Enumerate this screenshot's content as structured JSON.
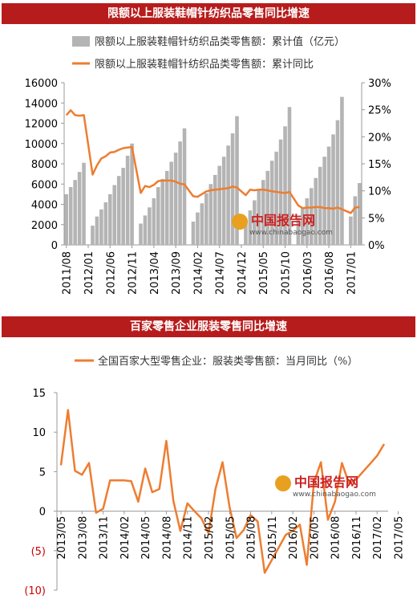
{
  "watermark": {
    "brand": "中国报告网",
    "url": "www.chinabaogao.com",
    "logo": "CBG"
  },
  "chart_data": [
    {
      "type": "bar+line",
      "title": "限额以上服装鞋帽针纺织品零售同比增速",
      "categories_ticks": [
        "2011/08",
        "2012/01",
        "2012/06",
        "2012/11",
        "2013/04",
        "2013/09",
        "2014/02",
        "2014/07",
        "2014/12",
        "2015/05",
        "2015/10",
        "2016/03",
        "2016/08",
        "2017/01"
      ],
      "start_month": "2011/08",
      "legend_position": "top",
      "yleft": {
        "min": 0,
        "max": 16000,
        "ticks": [
          "0",
          "2000",
          "4000",
          "6000",
          "8000",
          "10000",
          "12000",
          "14000",
          "16000"
        ]
      },
      "yright": {
        "min": 0,
        "max": 30,
        "ticks": [
          "0%",
          "5%",
          "10%",
          "15%",
          "20%",
          "25%",
          "30%"
        ]
      },
      "series": [
        {
          "name": "限额以上服装鞋帽针纺织品类零售额：累计值（亿元）",
          "kind": "bar",
          "color": "#b4b4b4",
          "values": [
            5000,
            5700,
            6400,
            7200,
            8100,
            null,
            1900,
            2800,
            3500,
            4200,
            5000,
            5900,
            6800,
            7600,
            8800,
            10000,
            null,
            2100,
            2900,
            3700,
            4600,
            5700,
            6500,
            7300,
            8200,
            9100,
            10200,
            11500,
            null,
            2300,
            3200,
            4100,
            5100,
            6000,
            6900,
            7800,
            8700,
            9800,
            11000,
            12700,
            null,
            2500,
            3400,
            4400,
            5400,
            6400,
            7300,
            8300,
            9200,
            10400,
            11700,
            13600,
            null,
            2700,
            3600,
            4600,
            5600,
            6600,
            7700,
            8700,
            9700,
            10900,
            12300,
            14600,
            null,
            2800,
            4800,
            6100
          ]
        },
        {
          "name": "限额以上服装鞋帽针纺织品类零售额：累计同比",
          "kind": "line",
          "color": "#ed7d31",
          "values": [
            24,
            24.9,
            24,
            23.9,
            24,
            null,
            13,
            14.7,
            16,
            16.4,
            17.1,
            17.2,
            17.6,
            17.9,
            18,
            18.1,
            null,
            9.6,
            10.9,
            10.7,
            11.1,
            11.8,
            11.9,
            11.9,
            11.9,
            11.7,
            11.3,
            11.2,
            null,
            9,
            8.9,
            9.4,
            9.9,
            10.1,
            10.2,
            10.3,
            10.4,
            10.5,
            10.8,
            10.6,
            null,
            9.2,
            10.2,
            10.1,
            10.2,
            10.2,
            10.1,
            9.9,
            9.8,
            9.7,
            9.6,
            9.8,
            null,
            7.3,
            6.8,
            6.9,
            6.9,
            7,
            7,
            6.8,
            6.8,
            6.7,
            6.9,
            6.6,
            null,
            5.9,
            6.9,
            7
          ]
        }
      ]
    },
    {
      "type": "line",
      "title": "百家零售企业服装零售同比增速",
      "categories_ticks": [
        "2013/05",
        "2013/08",
        "2013/11",
        "2014/02",
        "2014/05",
        "2014/08",
        "2014/11",
        "2015/02",
        "2015/05",
        "2015/08",
        "2015/11",
        "2016/02",
        "2016/05",
        "2016/08",
        "2016/11",
        "2017/02",
        "2017/05"
      ],
      "start_month": "2013/05",
      "legend_position": "top",
      "y": {
        "min": -10,
        "max": 15,
        "ticks": [
          "15",
          "10",
          "5",
          "0",
          "(5)",
          "(10)"
        ],
        "negative_color": "#cc0000"
      },
      "series": [
        {
          "name": "全国百家大型零售企业：服装类零售额：当月同比（%）",
          "color": "#ed7d31",
          "values": [
            5.8,
            12.8,
            5.1,
            4.6,
            6.1,
            -0.2,
            0.3,
            3.9,
            3.9,
            3.9,
            3.8,
            1.2,
            5.4,
            2.4,
            2.8,
            8.9,
            1.3,
            -2.5,
            1,
            0,
            -0.9,
            -2.8,
            2.8,
            6.2,
            0.5,
            -3.4,
            -2.4,
            -0.5,
            -1.3,
            -7.8,
            -6.2,
            -4.6,
            -3,
            -2.5,
            -1.7,
            -6.8,
            3.6,
            6.2,
            -1.1,
            1.2,
            6.1,
            3.5,
            4,
            5,
            6,
            7,
            8.5
          ]
        }
      ]
    }
  ]
}
